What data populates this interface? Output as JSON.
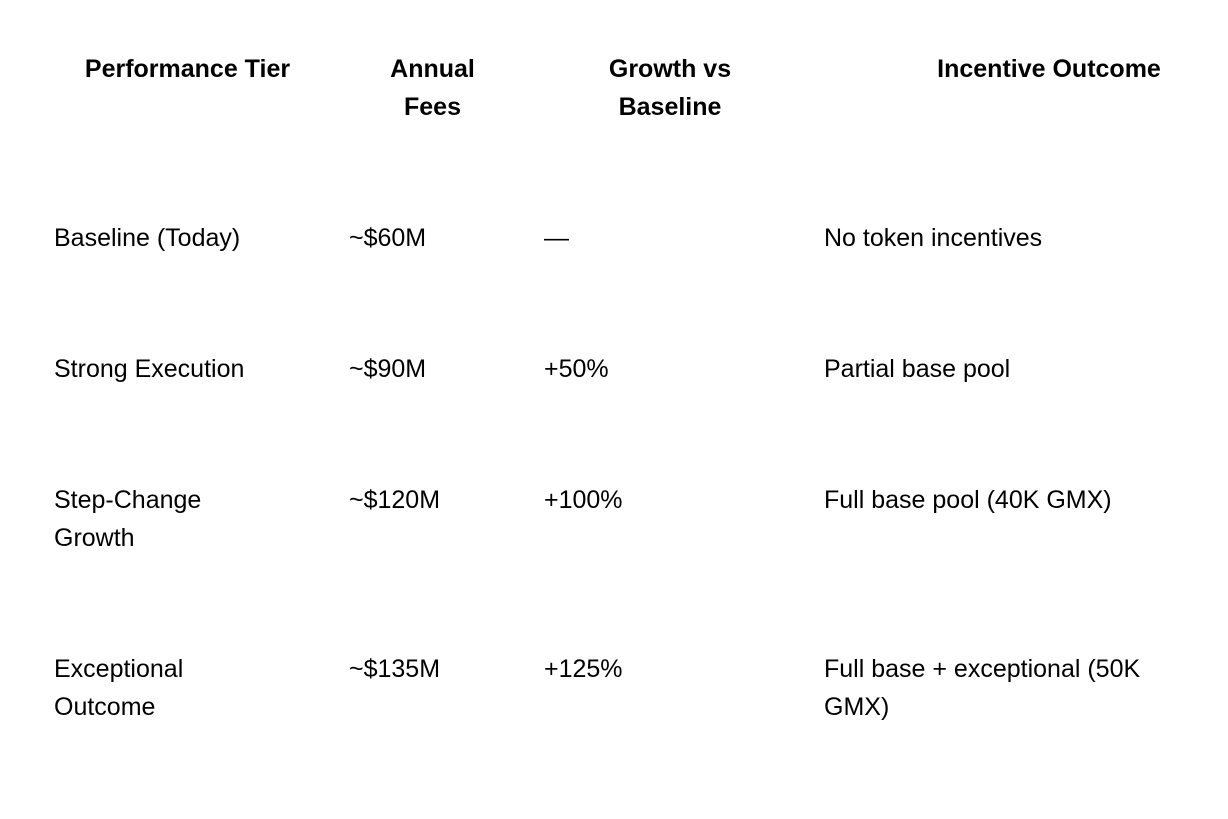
{
  "table": {
    "columns": [
      {
        "label": "Performance Tier"
      },
      {
        "label": "Annual\nFees"
      },
      {
        "label": "Growth vs\nBaseline"
      },
      {
        "label": "Incentive Outcome"
      }
    ],
    "rows": [
      {
        "tier": "Baseline (Today)",
        "annual_fees": "~$60M",
        "growth_vs_baseline": "—",
        "incentive_outcome": "No token incentives"
      },
      {
        "tier": "Strong Execution",
        "annual_fees": "~$90M",
        "growth_vs_baseline": "+50%",
        "incentive_outcome": "Partial base pool"
      },
      {
        "tier": "Step-Change\nGrowth",
        "annual_fees": "~$120M",
        "growth_vs_baseline": "+100%",
        "incentive_outcome": "Full base pool (40K GMX)"
      },
      {
        "tier": "Exceptional\nOutcome",
        "annual_fees": "~$135M",
        "growth_vs_baseline": "+125%",
        "incentive_outcome": "Full base + exceptional (50K\nGMX)"
      }
    ]
  },
  "colors": {
    "background": "#ffffff",
    "text": "#000000"
  }
}
